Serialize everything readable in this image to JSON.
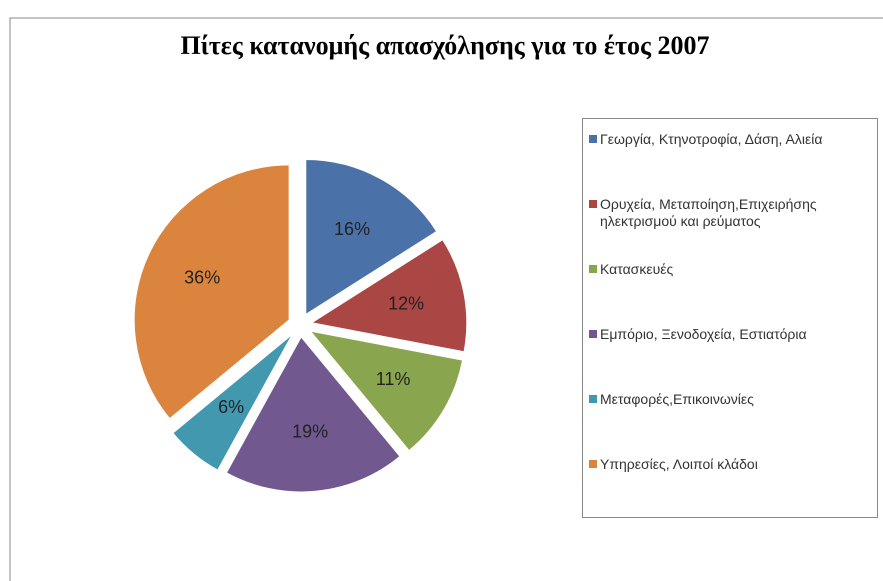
{
  "chart_data": {
    "type": "pie",
    "title": "Πίτες κατανομής απασχόλησης για το έτος 2007",
    "categories": [
      "Γεωργία, Κτηνοτροφία, Δάση, Αλιεία",
      "Ορυχεία, Μεταποίηση,Επιχειρήσης ηλεκτρισμού και ρεύματος",
      "Κατασκευές",
      "Εμπόριο, Ξενοδοχεία, Εστιατόρια",
      "Μεταφορές,Επικοινωνίες",
      "Υπηρεσίες, Λοιποί κλάδοι"
    ],
    "values": [
      16,
      12,
      11,
      19,
      6,
      36
    ],
    "value_labels": [
      "16%",
      "12%",
      "11%",
      "19%",
      "6%",
      "36%"
    ],
    "colors": [
      "#4a72a8",
      "#aa4644",
      "#89a54e",
      "#71588f",
      "#4198af",
      "#db843d"
    ],
    "legend": "right"
  }
}
